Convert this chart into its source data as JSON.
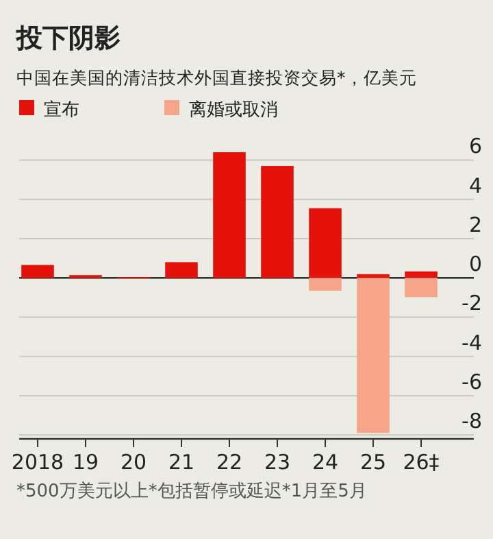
{
  "chart_data": {
    "type": "bar",
    "title": "投下阴影",
    "subtitle": "中国在美国的清洁技术外国直接投资交易*，亿美元",
    "categories": [
      "2018",
      "19",
      "20",
      "21",
      "22",
      "23",
      "24",
      "25",
      "26‡"
    ],
    "series": [
      {
        "name": "宣布",
        "color": "#e3120b",
        "values": [
          0.66,
          0.14,
          0.03,
          0.8,
          6.4,
          5.7,
          3.55,
          0.19,
          0.33
        ]
      },
      {
        "name": "离婚或取消",
        "color": "#f6a58a",
        "values": [
          null,
          null,
          null,
          null,
          null,
          null,
          -0.65,
          -7.9,
          -0.98
        ]
      }
    ],
    "stacked": true,
    "ylim": [
      -8.2,
      6.4
    ],
    "yticks": [
      -8,
      -6,
      -4,
      -2,
      0,
      2,
      4,
      6
    ],
    "grid": "y",
    "legend": "top left",
    "annotations": [
      "*500万美元以上*包括暂停或延迟*1月至5月"
    ]
  }
}
